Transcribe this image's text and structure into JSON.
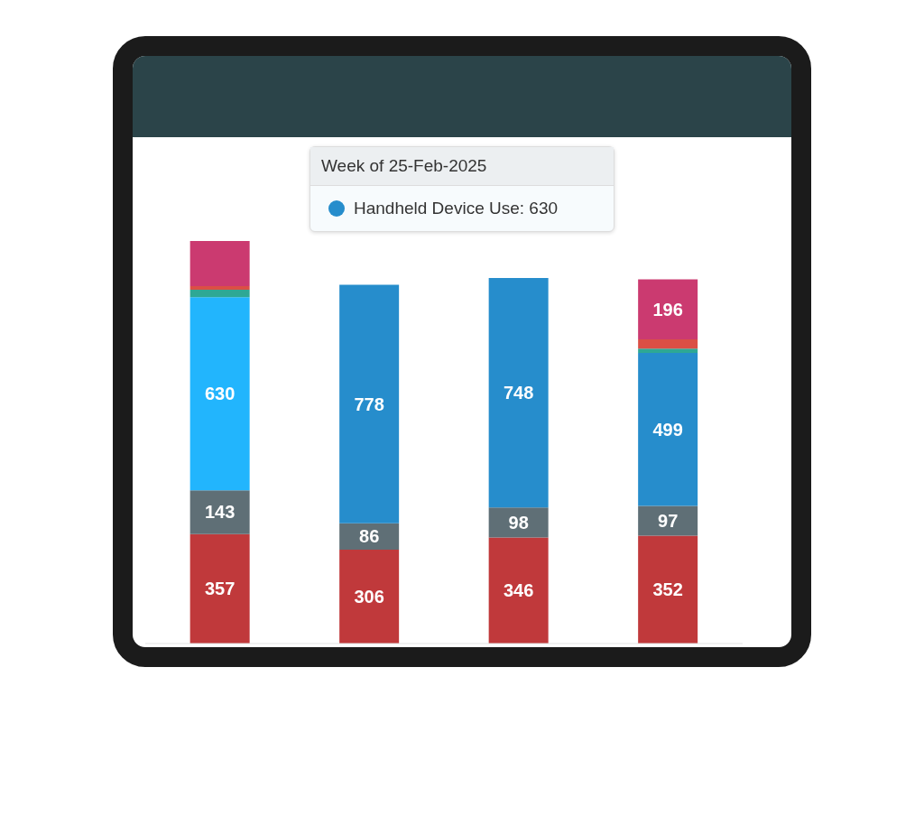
{
  "chart_data": {
    "type": "bar",
    "stacked": true,
    "categories": [
      null,
      null,
      null,
      null
    ],
    "series": [
      {
        "color": "#c0393b",
        "values": [
          357,
          306,
          346,
          352
        ],
        "value_labels": [
          "357",
          "306",
          "346",
          "352"
        ]
      },
      {
        "color": "#5f6f76",
        "values": [
          143,
          86,
          98,
          97
        ],
        "value_labels": [
          "143",
          "86",
          "98",
          "97"
        ]
      },
      {
        "color": "#268dcc",
        "colors": [
          "#22b5fd",
          "#268dcc",
          "#268dcc",
          "#268dcc"
        ],
        "values": [
          630,
          778,
          748,
          499
        ],
        "value_labels": [
          "630",
          "778",
          "748",
          "499"
        ]
      },
      {
        "color": "#2ea894",
        "values": [
          24,
          null,
          null,
          14
        ],
        "value_labels": [
          null,
          null,
          null,
          null
        ]
      },
      {
        "color": "#db4f45",
        "values": [
          12,
          null,
          null,
          30
        ],
        "value_labels": [
          null,
          null,
          null,
          null
        ]
      },
      {
        "color": "#cb3a70",
        "values": [
          147,
          null,
          null,
          196
        ],
        "value_labels": [
          null,
          null,
          null,
          "196"
        ]
      }
    ],
    "tick_labels": false,
    "annotations": [
      "Week of 25-Feb-2025",
      "Handheld Device Use: 630"
    ]
  }
}
